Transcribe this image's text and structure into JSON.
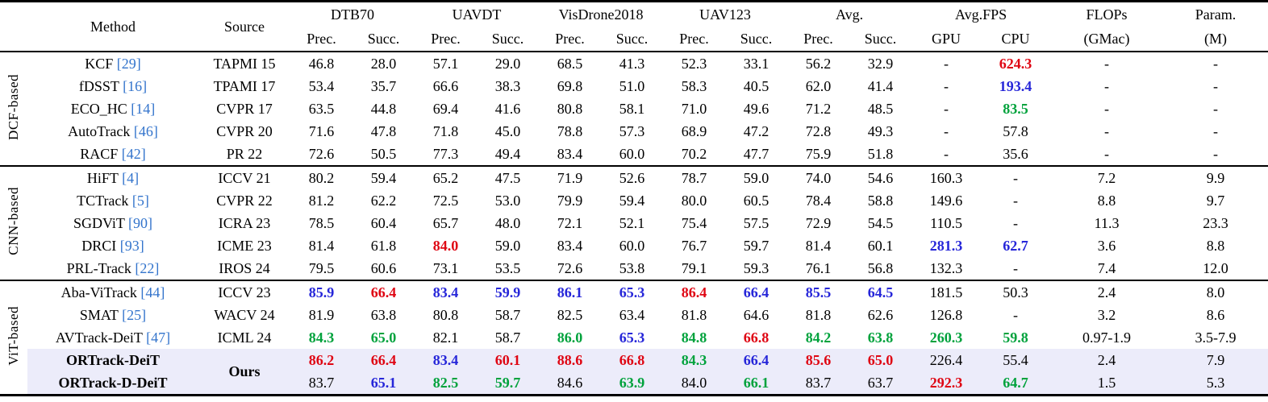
{
  "colors": {
    "best": "#df0613",
    "second": "#2626d9",
    "third": "#00a23c",
    "cite": "#3374cc",
    "highlight_bg": "#ececfa"
  },
  "table": {
    "headers": {
      "method": "Method",
      "source": "Source",
      "spans": [
        {
          "label": "DTB70",
          "sub": [
            "Prec.",
            "Succ."
          ]
        },
        {
          "label": "UAVDT",
          "sub": [
            "Prec.",
            "Succ."
          ]
        },
        {
          "label": "VisDrone2018",
          "sub": [
            "Prec.",
            "Succ."
          ]
        },
        {
          "label": "UAV123",
          "sub": [
            "Prec.",
            "Succ."
          ]
        },
        {
          "label": "Avg.",
          "sub": [
            "Prec.",
            "Succ."
          ]
        },
        {
          "label": "Avg.FPS",
          "sub": [
            "GPU",
            "CPU"
          ]
        }
      ],
      "singles": [
        {
          "line1": "FLOPs",
          "line2": "(GMac)"
        },
        {
          "line1": "Param.",
          "line2": "(M)"
        }
      ]
    },
    "groups": [
      {
        "name": "DCF-based",
        "rows": [
          {
            "method": "KCF",
            "cite": "[29]",
            "source": "TAPMI 15",
            "values": [
              "46.8",
              "28.0",
              "57.1",
              "29.0",
              "68.5",
              "41.3",
              "52.3",
              "33.1",
              "56.2",
              "32.9",
              "-",
              {
                "v": "624.3",
                "c": "r"
              },
              "-",
              "-"
            ]
          },
          {
            "method": "fDSST",
            "cite": "[16]",
            "source": "TPAMI 17",
            "values": [
              "53.4",
              "35.7",
              "66.6",
              "38.3",
              "69.8",
              "51.0",
              "58.3",
              "40.5",
              "62.0",
              "41.4",
              "-",
              {
                "v": "193.4",
                "c": "b"
              },
              "-",
              "-"
            ]
          },
          {
            "method": "ECO_HC",
            "cite": "[14]",
            "source": "CVPR 17",
            "values": [
              "63.5",
              "44.8",
              "69.4",
              "41.6",
              "80.8",
              "58.1",
              "71.0",
              "49.6",
              "71.2",
              "48.5",
              "-",
              {
                "v": "83.5",
                "c": "g"
              },
              "-",
              "-"
            ]
          },
          {
            "method": "AutoTrack",
            "cite": "[46]",
            "source": "CVPR 20",
            "values": [
              "71.6",
              "47.8",
              "71.8",
              "45.0",
              "78.8",
              "57.3",
              "68.9",
              "47.2",
              "72.8",
              "49.3",
              "-",
              "57.8",
              "-",
              "-"
            ]
          },
          {
            "method": "RACF",
            "cite": "[42]",
            "source": "PR 22",
            "values": [
              "72.6",
              "50.5",
              "77.3",
              "49.4",
              "83.4",
              "60.0",
              "70.2",
              "47.7",
              "75.9",
              "51.8",
              "-",
              "35.6",
              "-",
              "-"
            ]
          }
        ]
      },
      {
        "name": "CNN-based",
        "rows": [
          {
            "method": "HiFT",
            "cite": "[4]",
            "source": "ICCV 21",
            "values": [
              "80.2",
              "59.4",
              "65.2",
              "47.5",
              "71.9",
              "52.6",
              "78.7",
              "59.0",
              "74.0",
              "54.6",
              "160.3",
              "-",
              "7.2",
              "9.9"
            ]
          },
          {
            "method": "TCTrack",
            "cite": "[5]",
            "source": "CVPR 22",
            "values": [
              "81.2",
              "62.2",
              "72.5",
              "53.0",
              "79.9",
              "59.4",
              "80.0",
              "60.5",
              "78.4",
              "58.8",
              "149.6",
              "-",
              "8.8",
              "9.7"
            ]
          },
          {
            "method": "SGDViT",
            "cite": "[90]",
            "source": "ICRA 23",
            "values": [
              "78.5",
              "60.4",
              "65.7",
              "48.0",
              "72.1",
              "52.1",
              "75.4",
              "57.5",
              "72.9",
              "54.5",
              "110.5",
              "-",
              "11.3",
              "23.3"
            ]
          },
          {
            "method": "DRCI",
            "cite": "[93]",
            "source": "ICME 23",
            "values": [
              "81.4",
              "61.8",
              {
                "v": "84.0",
                "c": "r"
              },
              "59.0",
              "83.4",
              "60.0",
              "76.7",
              "59.7",
              "81.4",
              "60.1",
              {
                "v": "281.3",
                "c": "b"
              },
              {
                "v": "62.7",
                "c": "b"
              },
              "3.6",
              "8.8"
            ]
          },
          {
            "method": "PRL-Track",
            "cite": "[22]",
            "source": "IROS 24",
            "values": [
              "79.5",
              "60.6",
              "73.1",
              "53.5",
              "72.6",
              "53.8",
              "79.1",
              "59.3",
              "76.1",
              "56.8",
              "132.3",
              "-",
              "7.4",
              "12.0"
            ]
          }
        ]
      },
      {
        "name": "ViT-based",
        "rows": [
          {
            "method": "Aba-ViTrack",
            "cite": "[44]",
            "source": "ICCV 23",
            "values": [
              {
                "v": "85.9",
                "c": "b"
              },
              {
                "v": "66.4",
                "c": "r"
              },
              {
                "v": "83.4",
                "c": "b"
              },
              {
                "v": "59.9",
                "c": "b"
              },
              {
                "v": "86.1",
                "c": "b"
              },
              {
                "v": "65.3",
                "c": "b"
              },
              {
                "v": "86.4",
                "c": "r"
              },
              {
                "v": "66.4",
                "c": "b"
              },
              {
                "v": "85.5",
                "c": "b"
              },
              {
                "v": "64.5",
                "c": "b"
              },
              "181.5",
              "50.3",
              "2.4",
              "8.0"
            ]
          },
          {
            "method": "SMAT",
            "cite": "[25]",
            "source": "WACV 24",
            "values": [
              "81.9",
              "63.8",
              "80.8",
              "58.7",
              "82.5",
              "63.4",
              "81.8",
              "64.6",
              "81.8",
              "62.6",
              "126.8",
              "-",
              "3.2",
              "8.6"
            ]
          },
          {
            "method": "AVTrack-DeiT",
            "cite": "[47]",
            "source": "ICML 24",
            "values": [
              {
                "v": "84.3",
                "c": "g"
              },
              {
                "v": "65.0",
                "c": "g"
              },
              "82.1",
              "58.7",
              {
                "v": "86.0",
                "c": "g"
              },
              {
                "v": "65.3",
                "c": "b"
              },
              {
                "v": "84.8",
                "c": "g"
              },
              {
                "v": "66.8",
                "c": "r"
              },
              {
                "v": "84.2",
                "c": "g"
              },
              {
                "v": "63.8",
                "c": "g"
              },
              {
                "v": "260.3",
                "c": "g"
              },
              {
                "v": "59.8",
                "c": "g"
              },
              "0.97-1.9",
              "3.5-7.9"
            ]
          },
          {
            "method": "ORTrack-DeiT",
            "cite": null,
            "bold": true,
            "highlight": true,
            "source": "Ours",
            "source_rowspan": 2,
            "source_bold": true,
            "values": [
              {
                "v": "86.2",
                "c": "r"
              },
              {
                "v": "66.4",
                "c": "r"
              },
              {
                "v": "83.4",
                "c": "b"
              },
              {
                "v": "60.1",
                "c": "r"
              },
              {
                "v": "88.6",
                "c": "r"
              },
              {
                "v": "66.8",
                "c": "r"
              },
              {
                "v": "84.3",
                "c": "g"
              },
              {
                "v": "66.4",
                "c": "b"
              },
              {
                "v": "85.6",
                "c": "r"
              },
              {
                "v": "65.0",
                "c": "r"
              },
              "226.4",
              "55.4",
              "2.4",
              "7.9"
            ]
          },
          {
            "method": "ORTrack-D-DeiT",
            "cite": null,
            "bold": true,
            "highlight": true,
            "source": null,
            "values": [
              "83.7",
              {
                "v": "65.1",
                "c": "b"
              },
              {
                "v": "82.5",
                "c": "g"
              },
              {
                "v": "59.7",
                "c": "g"
              },
              "84.6",
              {
                "v": "63.9",
                "c": "g"
              },
              "84.0",
              {
                "v": "66.1",
                "c": "g"
              },
              "83.7",
              "63.7",
              {
                "v": "292.3",
                "c": "r"
              },
              {
                "v": "64.7",
                "c": "g"
              },
              "1.5",
              "5.3"
            ]
          }
        ]
      }
    ]
  }
}
